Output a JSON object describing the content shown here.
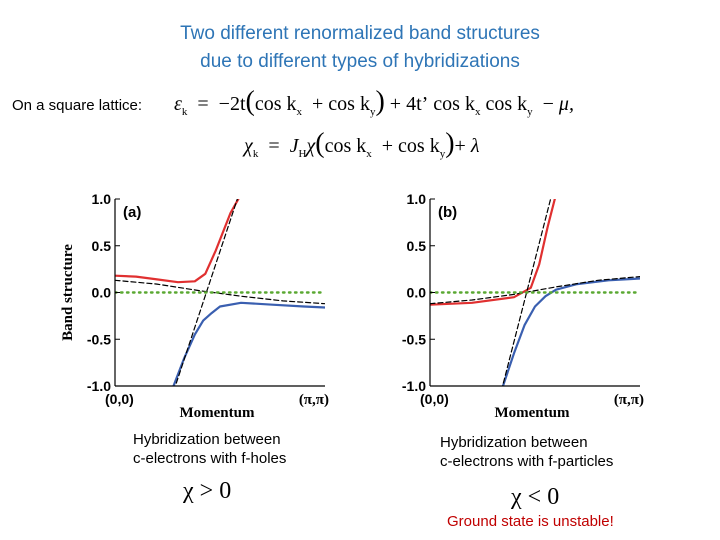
{
  "title": {
    "line1": "Two different renormalized band structures",
    "line2": "due to different types of hybridizations"
  },
  "lattice_label": "On a square lattice:",
  "equation1": {
    "lhs": "ε",
    "lhs_sub": "k",
    "eq": "=",
    "t1": "−2t",
    "cos1": "cos k",
    "cos1_sub": "x",
    "plus": "+",
    "cos2": "cos k",
    "cos2_sub": "y",
    "t2": "4t’",
    "cos3": "cos k",
    "cos3_sub": "x",
    "cos4": "cos k",
    "cos4_sub": "y",
    "minus": "−",
    "mu": "μ,"
  },
  "equation2": {
    "lhs": "χ",
    "lhs_sub": "k",
    "eq": "=",
    "j": "J",
    "j_sub": "H",
    "chi": "χ",
    "cos1": "cos k",
    "cos1_sub": "x",
    "plus": "+",
    "cos2": "cos k",
    "cos2_sub": "y",
    "plus2": "+",
    "lambda": "λ"
  },
  "chart_data": [
    {
      "type": "line",
      "panel_label": "(a)",
      "ylabel": "Band structure",
      "xlabel": "Momentum",
      "x_tick_labels": [
        "(0,0)",
        "(π,π)"
      ],
      "y_ticks": [
        "1.0",
        "0.5",
        "0.0",
        "-0.5",
        "-1.0"
      ],
      "ylim": [
        -1.0,
        1.0
      ],
      "xlim": [
        0,
        1
      ],
      "series": [
        {
          "color": "#e03030",
          "style": "solid",
          "x": [
            0,
            0.1,
            0.2,
            0.3,
            0.38,
            0.43,
            0.48,
            0.55,
            0.6
          ],
          "y": [
            0.18,
            0.17,
            0.14,
            0.11,
            0.12,
            0.2,
            0.45,
            0.85,
            1.05
          ]
        },
        {
          "color": "#3a5fb0",
          "style": "solid",
          "x": [
            0.27,
            0.33,
            0.38,
            0.42,
            0.46,
            0.5,
            0.6,
            0.75,
            0.9,
            1.0
          ],
          "y": [
            -1.05,
            -0.7,
            -0.45,
            -0.3,
            -0.22,
            -0.15,
            -0.11,
            -0.13,
            -0.15,
            -0.16
          ]
        },
        {
          "color": "#000000",
          "style": "dashed",
          "x": [
            0.28,
            0.59
          ],
          "y": [
            -1.05,
            1.05
          ]
        },
        {
          "color": "#000000",
          "style": "dashed",
          "x": [
            0,
            0.2,
            0.4,
            0.6,
            0.8,
            1.0
          ],
          "y": [
            0.13,
            0.09,
            0.02,
            -0.04,
            -0.09,
            -0.12
          ]
        },
        {
          "color": "#5aa832",
          "style": "dotted",
          "x": [
            0,
            1
          ],
          "y": [
            0,
            0
          ]
        }
      ]
    },
    {
      "type": "line",
      "panel_label": "(b)",
      "xlabel": "Momentum",
      "x_tick_labels": [
        "(0,0)",
        "(π,π)"
      ],
      "y_ticks": [
        "1.0",
        "0.5",
        "0.0",
        "-0.5",
        "-1.0"
      ],
      "ylim": [
        -1.0,
        1.0
      ],
      "xlim": [
        0,
        1
      ],
      "series": [
        {
          "color": "#e03030",
          "style": "solid",
          "x": [
            0,
            0.2,
            0.4,
            0.48,
            0.52,
            0.56,
            0.6
          ],
          "y": [
            -0.13,
            -0.11,
            -0.05,
            0.05,
            0.3,
            0.7,
            1.05
          ]
        },
        {
          "color": "#3a5fb0",
          "style": "solid",
          "x": [
            0.34,
            0.4,
            0.45,
            0.5,
            0.55,
            0.6,
            0.7,
            0.85,
            1.0
          ],
          "y": [
            -1.05,
            -0.65,
            -0.35,
            -0.15,
            -0.04,
            0.03,
            0.09,
            0.13,
            0.15
          ]
        },
        {
          "color": "#000000",
          "style": "dashed",
          "x": [
            0.34,
            0.58
          ],
          "y": [
            -1.05,
            1.05
          ]
        },
        {
          "color": "#000000",
          "style": "dashed",
          "x": [
            0,
            0.2,
            0.4,
            0.6,
            0.8,
            1.0
          ],
          "y": [
            -0.12,
            -0.08,
            -0.02,
            0.06,
            0.13,
            0.17
          ]
        },
        {
          "color": "#5aa832",
          "style": "dotted",
          "x": [
            0,
            1
          ],
          "y": [
            0,
            0
          ]
        }
      ]
    }
  ],
  "caption_a": {
    "line1": "Hybridization between",
    "line2": "c-electrons with f-holes"
  },
  "caption_b": {
    "line1": "Hybridization between",
    "line2": "c-electrons with f-particles"
  },
  "cond_a": "χ > 0",
  "cond_b": "χ < 0",
  "unstable_note": "Ground state is unstable!"
}
